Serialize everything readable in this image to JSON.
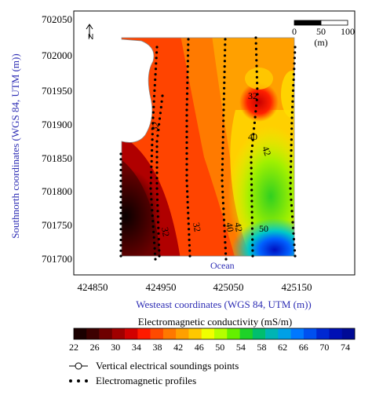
{
  "map": {
    "y_axis_label": "Southnorth coordinates (WGS 84, UTM (m))",
    "x_axis_label": "Westeast coordinates (WGS 84, UTM (m))",
    "y_ticks": [
      "702050",
      "702000",
      "701950",
      "701900",
      "701850",
      "701800",
      "701750",
      "701700"
    ],
    "x_ticks": [
      "424850",
      "424950",
      "425050",
      "425150"
    ],
    "ocean_label": "Ocean",
    "north_arrow": "N",
    "scale_bar": {
      "labels": [
        "0",
        "50",
        "100"
      ],
      "unit": "(m)"
    },
    "contour_labels": [
      "32",
      "32",
      "40",
      "42",
      "32",
      "32",
      "40",
      "42",
      "50"
    ]
  },
  "colorbar": {
    "title": "Electromagnetic conductivity (mS/m)",
    "ticks": [
      "22",
      "26",
      "30",
      "34",
      "38",
      "42",
      "46",
      "50",
      "54",
      "58",
      "62",
      "66",
      "70",
      "74"
    ],
    "colors": [
      "#1a0000",
      "#3d0000",
      "#6e0000",
      "#a00000",
      "#d20000",
      "#ff1a00",
      "#ff4a00",
      "#ff7800",
      "#ffa000",
      "#ffc800",
      "#f0ff00",
      "#b4ff00",
      "#64f000",
      "#1ed228",
      "#00be6e",
      "#00b4b4",
      "#00a0e6",
      "#0078ff",
      "#0050f0",
      "#0028d2",
      "#0010b4",
      "#000a96"
    ]
  },
  "legend": {
    "ves_label": "Vertical electrical soundings points",
    "em_label": "Electromagnetic profiles"
  },
  "colors": {
    "axis_label": "#2d2db4"
  }
}
